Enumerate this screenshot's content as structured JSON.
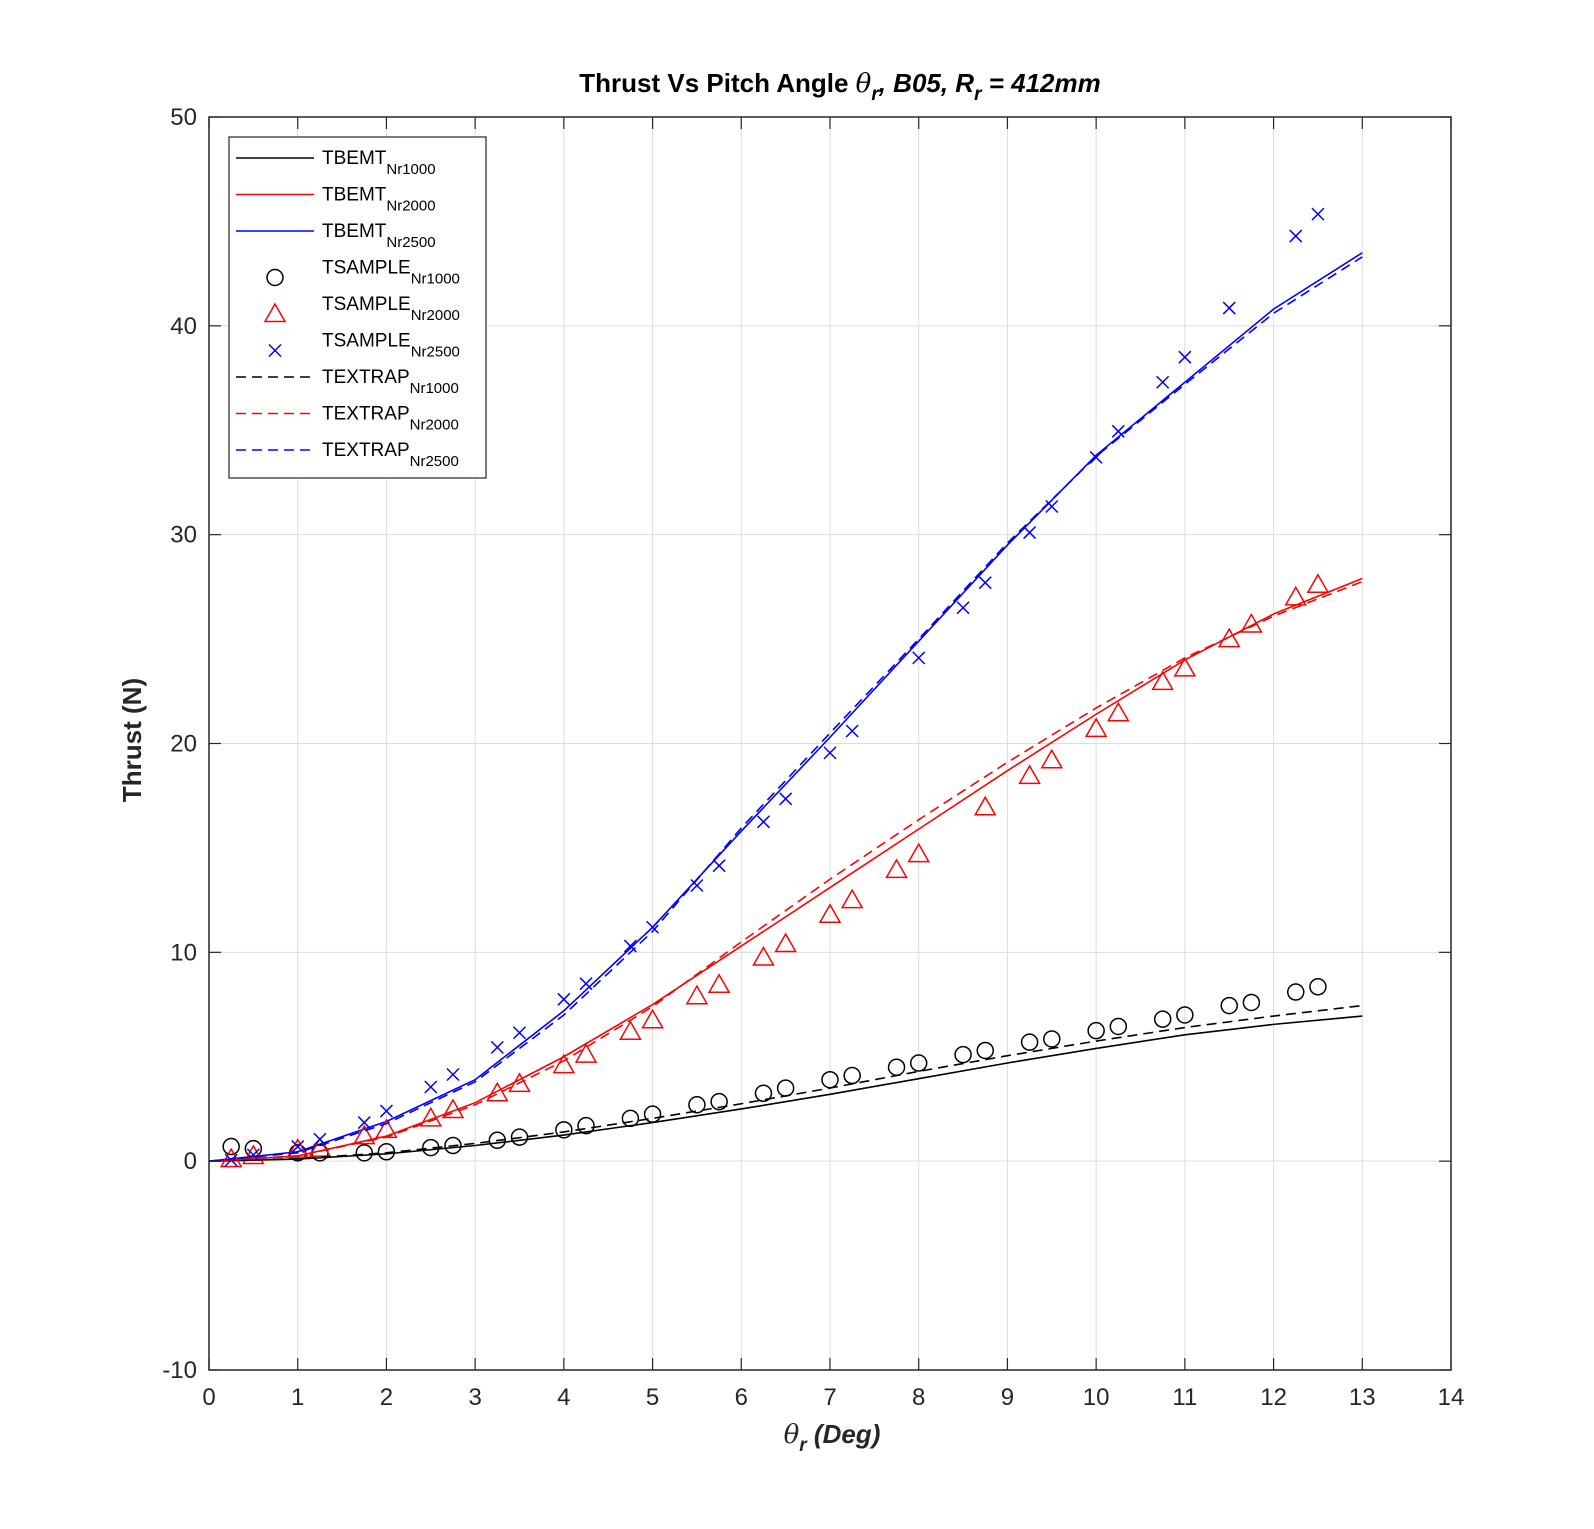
{
  "chart_data": {
    "type": "line",
    "title": {
      "prefix": "Thrust Vs Pitch Angle ",
      "theta": "θ",
      "theta_sub": "r",
      "middle": ", B05, R",
      "r_sub": "r",
      "suffix": " = 412mm"
    },
    "xlabel": {
      "theta": "θ",
      "sub": "r",
      "text": " (Deg)"
    },
    "ylabel": "Thrust (N)",
    "xlim": [
      0,
      14
    ],
    "ylim": [
      -10,
      50
    ],
    "xticks": [
      0,
      1,
      2,
      3,
      4,
      5,
      6,
      7,
      8,
      9,
      10,
      11,
      12,
      13,
      14
    ],
    "yticks": [
      -10,
      0,
      10,
      20,
      30,
      40,
      50
    ],
    "xtick_labels": [
      "0",
      "1",
      "2",
      "3",
      "4",
      "5",
      "6",
      "7",
      "8",
      "9",
      "10",
      "11",
      "12",
      "13",
      "14"
    ],
    "ytick_labels": [
      "-10",
      "0",
      "10",
      "20",
      "30",
      "40",
      "50"
    ],
    "grid": true,
    "legend_position": "top-left",
    "series": [
      {
        "name": "TBEMT",
        "sub": "Nr1000",
        "kind": "line",
        "dash": "solid",
        "color": "#000000",
        "x": [
          0,
          1,
          2,
          3,
          4,
          5,
          6,
          7,
          8,
          9,
          10,
          11,
          12,
          13
        ],
        "y": [
          0,
          0.1,
          0.35,
          0.75,
          1.25,
          1.85,
          2.5,
          3.2,
          3.95,
          4.7,
          5.4,
          6.05,
          6.55,
          6.95
        ]
      },
      {
        "name": "TBEMT",
        "sub": "Nr2000",
        "kind": "line",
        "dash": "solid",
        "color": "#ff0000",
        "x": [
          0,
          1,
          2,
          3,
          4,
          5,
          6,
          7,
          8,
          9,
          10,
          11,
          12,
          13
        ],
        "y": [
          0,
          0.25,
          1.2,
          2.8,
          5.0,
          7.5,
          10.3,
          13.1,
          15.9,
          18.7,
          21.4,
          24.0,
          26.2,
          27.9
        ]
      },
      {
        "name": "TBEMT",
        "sub": "Nr2500",
        "kind": "line",
        "dash": "solid",
        "color": "#0000ff",
        "x": [
          0,
          1,
          2,
          3,
          4,
          5,
          6,
          7,
          8,
          9,
          10,
          11,
          12,
          13
        ],
        "y": [
          0,
          0.45,
          1.9,
          3.9,
          7.2,
          11.2,
          15.8,
          20.3,
          24.9,
          29.5,
          33.8,
          37.3,
          40.8,
          43.5
        ]
      },
      {
        "name": "TSAMPLE",
        "sub": "Nr1000",
        "kind": "scatter",
        "marker": "circle",
        "color": "#000000",
        "x": [
          0.25,
          0.5,
          1.0,
          1.25,
          1.75,
          2.0,
          2.5,
          2.75,
          3.25,
          3.5,
          4.0,
          4.25,
          4.75,
          5.0,
          5.5,
          5.75,
          6.25,
          6.5,
          7.0,
          7.25,
          7.75,
          8.0,
          8.5,
          8.75,
          9.25,
          9.5,
          10.0,
          10.25,
          10.75,
          11.0,
          11.5,
          11.75,
          12.25,
          12.5
        ],
        "y": [
          0.7,
          0.6,
          0.4,
          0.4,
          0.4,
          0.45,
          0.65,
          0.75,
          1.0,
          1.15,
          1.5,
          1.7,
          2.05,
          2.25,
          2.7,
          2.85,
          3.25,
          3.5,
          3.9,
          4.1,
          4.5,
          4.7,
          5.1,
          5.3,
          5.7,
          5.85,
          6.25,
          6.45,
          6.8,
          7.0,
          7.45,
          7.6,
          8.1,
          8.35
        ]
      },
      {
        "name": "TSAMPLE",
        "sub": "Nr2000",
        "kind": "scatter",
        "marker": "triangle",
        "color": "#ff0000",
        "x": [
          0.25,
          0.5,
          1.0,
          1.25,
          1.75,
          2.0,
          2.5,
          2.75,
          3.25,
          3.5,
          4.0,
          4.25,
          4.75,
          5.0,
          5.5,
          5.75,
          6.25,
          6.5,
          7.0,
          7.25,
          7.75,
          8.0,
          8.75,
          9.25,
          9.5,
          10.0,
          10.25,
          10.75,
          11.0,
          11.5,
          11.75,
          12.25,
          12.5
        ],
        "y": [
          0.1,
          0.25,
          0.55,
          0.6,
          1.2,
          1.5,
          2.05,
          2.45,
          3.25,
          3.7,
          4.6,
          5.1,
          6.2,
          6.75,
          7.9,
          8.45,
          9.75,
          10.4,
          11.8,
          12.5,
          13.95,
          14.7,
          16.95,
          18.45,
          19.2,
          20.7,
          21.45,
          22.95,
          23.6,
          25.0,
          25.7,
          27.0,
          27.6
        ]
      },
      {
        "name": "TSAMPLE",
        "sub": "Nr2500",
        "kind": "scatter",
        "marker": "x",
        "color": "#0000ff",
        "x": [
          0.25,
          0.5,
          1.0,
          1.25,
          1.75,
          2.0,
          2.5,
          2.75,
          3.25,
          3.5,
          4.0,
          4.25,
          4.75,
          5.0,
          5.5,
          5.75,
          6.25,
          6.5,
          7.0,
          7.25,
          8.0,
          8.5,
          8.75,
          9.25,
          9.5,
          10.0,
          10.25,
          10.75,
          11.0,
          11.5,
          12.25,
          12.5
        ],
        "y": [
          0.05,
          0.3,
          0.7,
          1.05,
          1.85,
          2.4,
          3.55,
          4.15,
          5.45,
          6.15,
          7.75,
          8.5,
          10.3,
          11.2,
          13.2,
          14.15,
          16.25,
          17.35,
          19.55,
          20.6,
          24.1,
          26.5,
          27.7,
          30.1,
          31.35,
          33.7,
          34.95,
          37.3,
          38.5,
          40.85,
          44.3,
          45.35
        ]
      },
      {
        "name": "TEXTRAP",
        "sub": "Nr1000",
        "kind": "line",
        "dash": "dashed",
        "color": "#000000",
        "x": [
          0,
          1,
          2,
          3,
          4,
          5,
          6,
          7,
          8,
          9,
          10,
          11,
          12,
          13
        ],
        "y": [
          0,
          0.12,
          0.4,
          0.85,
          1.4,
          2.05,
          2.75,
          3.5,
          4.3,
          5.05,
          5.75,
          6.4,
          6.95,
          7.45
        ]
      },
      {
        "name": "TEXTRAP",
        "sub": "Nr2000",
        "kind": "line",
        "dash": "dashed",
        "color": "#ff0000",
        "x": [
          0,
          1,
          2,
          3,
          4,
          5,
          6,
          7,
          8,
          9,
          10,
          11,
          12,
          13
        ],
        "y": [
          0,
          0.25,
          1.15,
          2.7,
          4.8,
          7.4,
          10.5,
          13.5,
          16.35,
          19.1,
          21.7,
          24.1,
          26.1,
          27.75
        ]
      },
      {
        "name": "TEXTRAP",
        "sub": "Nr2500",
        "kind": "line",
        "dash": "dashed",
        "color": "#0000ff",
        "x": [
          0,
          1,
          2,
          3,
          4,
          5,
          6,
          7,
          8,
          9,
          10,
          11,
          12,
          13
        ],
        "y": [
          0,
          0.4,
          1.8,
          3.8,
          7.0,
          11.0,
          15.95,
          20.5,
          25.0,
          29.6,
          33.75,
          37.2,
          40.6,
          43.3
        ]
      }
    ]
  }
}
